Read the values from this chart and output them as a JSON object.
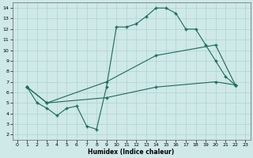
{
  "background_color": "#cfe8e8",
  "grid_color": "#b0d8d8",
  "line_color": "#1a6b5a",
  "marker": "+",
  "xlabel": "Humidex (Indice chaleur)",
  "xlim": [
    -0.5,
    23.5
  ],
  "ylim": [
    1.5,
    14.5
  ],
  "xticks": [
    0,
    1,
    2,
    3,
    4,
    5,
    6,
    7,
    8,
    9,
    10,
    11,
    12,
    13,
    14,
    15,
    16,
    17,
    18,
    19,
    20,
    21,
    22,
    23
  ],
  "yticks": [
    2,
    3,
    4,
    5,
    6,
    7,
    8,
    9,
    10,
    11,
    12,
    13,
    14
  ],
  "line1_x": [
    1,
    2,
    3,
    4,
    5,
    6,
    7,
    8,
    9,
    10,
    11,
    12,
    13,
    14,
    15,
    16,
    17,
    18,
    19,
    20,
    21,
    22
  ],
  "line1_y": [
    6.5,
    5.0,
    4.5,
    3.8,
    4.5,
    4.7,
    2.8,
    2.5,
    6.5,
    12.2,
    12.2,
    12.5,
    13.2,
    14.0,
    14.0,
    13.5,
    12.0,
    12.0,
    10.5,
    9.0,
    7.5,
    6.7
  ],
  "line2_x": [
    1,
    3,
    9,
    14,
    20,
    22
  ],
  "line2_y": [
    6.5,
    5.0,
    5.5,
    6.5,
    7.0,
    6.7
  ],
  "line3_x": [
    1,
    3,
    9,
    14,
    20,
    22
  ],
  "line3_y": [
    6.5,
    5.0,
    7.0,
    9.5,
    10.5,
    6.7
  ]
}
